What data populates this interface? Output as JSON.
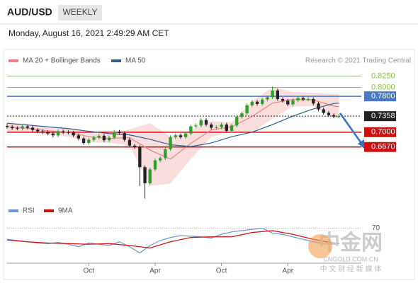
{
  "header": {
    "symbol": "AUD/USD",
    "period": "WEEKLY",
    "date": "Monday, August 16, 2021 2:49:29 AM CET"
  },
  "chart_data": [
    {
      "type": "candlestick",
      "legend": [
        {
          "name": "MA 20 + Bollinger Bands",
          "color": "#f08080"
        },
        {
          "name": "MA 50",
          "color": "#2f5f8f"
        }
      ],
      "credit": "Research © 2021 Trading Central",
      "up_color": "#2ca02c",
      "down_color": "#222222",
      "open": [
        0.714,
        0.712,
        0.709,
        0.708,
        0.713,
        0.71,
        0.705,
        0.702,
        0.7,
        0.697,
        0.693,
        0.702,
        0.7,
        0.699,
        0.693,
        0.686,
        0.676,
        0.683,
        0.688,
        0.692,
        0.682,
        0.688,
        0.701,
        0.698,
        0.683,
        0.67,
        0.667,
        0.622,
        0.586,
        0.617,
        0.637,
        0.642,
        0.662,
        0.689,
        0.693,
        0.689,
        0.697,
        0.713,
        0.715,
        0.727,
        0.717,
        0.71,
        0.711,
        0.717,
        0.703,
        0.715,
        0.734,
        0.742,
        0.76,
        0.768,
        0.763,
        0.773,
        0.778,
        0.793,
        0.774,
        0.77,
        0.762,
        0.771,
        0.776,
        0.773,
        0.774,
        0.764,
        0.751,
        0.743,
        0.738,
        0.735
      ],
      "high": [
        0.718,
        0.716,
        0.713,
        0.717,
        0.717,
        0.714,
        0.709,
        0.706,
        0.704,
        0.701,
        0.706,
        0.706,
        0.704,
        0.703,
        0.697,
        0.69,
        0.687,
        0.692,
        0.696,
        0.696,
        0.692,
        0.705,
        0.705,
        0.702,
        0.687,
        0.674,
        0.671,
        0.626,
        0.621,
        0.641,
        0.646,
        0.666,
        0.693,
        0.697,
        0.697,
        0.701,
        0.717,
        0.719,
        0.731,
        0.731,
        0.721,
        0.715,
        0.721,
        0.721,
        0.719,
        0.738,
        0.746,
        0.764,
        0.772,
        0.772,
        0.777,
        0.782,
        0.802,
        0.797,
        0.778,
        0.774,
        0.775,
        0.78,
        0.78,
        0.778,
        0.778,
        0.768,
        0.755,
        0.747,
        0.742,
        0.74
      ],
      "low": [
        0.708,
        0.705,
        0.704,
        0.704,
        0.706,
        0.701,
        0.698,
        0.696,
        0.693,
        0.689,
        0.689,
        0.696,
        0.695,
        0.689,
        0.682,
        0.672,
        0.672,
        0.679,
        0.684,
        0.678,
        0.678,
        0.684,
        0.694,
        0.679,
        0.666,
        0.663,
        0.58,
        0.552,
        0.582,
        0.613,
        0.633,
        0.638,
        0.658,
        0.685,
        0.685,
        0.685,
        0.693,
        0.709,
        0.711,
        0.713,
        0.706,
        0.706,
        0.707,
        0.699,
        0.699,
        0.711,
        0.73,
        0.738,
        0.756,
        0.759,
        0.759,
        0.769,
        0.774,
        0.77,
        0.766,
        0.758,
        0.758,
        0.767,
        0.769,
        0.769,
        0.76,
        0.747,
        0.739,
        0.734,
        0.731,
        0.731
      ],
      "close": [
        0.712,
        0.709,
        0.708,
        0.713,
        0.71,
        0.705,
        0.702,
        0.7,
        0.697,
        0.693,
        0.702,
        0.7,
        0.699,
        0.693,
        0.686,
        0.676,
        0.683,
        0.688,
        0.692,
        0.682,
        0.688,
        0.701,
        0.698,
        0.683,
        0.67,
        0.667,
        0.622,
        0.586,
        0.617,
        0.637,
        0.642,
        0.662,
        0.689,
        0.693,
        0.689,
        0.697,
        0.713,
        0.715,
        0.727,
        0.717,
        0.71,
        0.711,
        0.717,
        0.703,
        0.715,
        0.734,
        0.742,
        0.76,
        0.768,
        0.763,
        0.773,
        0.778,
        0.793,
        0.774,
        0.77,
        0.762,
        0.771,
        0.776,
        0.773,
        0.774,
        0.764,
        0.751,
        0.743,
        0.738,
        0.735,
        0.7358
      ],
      "overlay_x": [
        0,
        4,
        8,
        12,
        16,
        20,
        24,
        28,
        32,
        36,
        40,
        44,
        48,
        52,
        56,
        60,
        64,
        65
      ],
      "band_upper": [
        0.722,
        0.718,
        0.712,
        0.708,
        0.7,
        0.696,
        0.706,
        0.72,
        0.69,
        0.705,
        0.725,
        0.722,
        0.77,
        0.8,
        0.79,
        0.788,
        0.785,
        0.785
      ],
      "band_lower": [
        0.702,
        0.7,
        0.694,
        0.69,
        0.678,
        0.676,
        0.67,
        0.58,
        0.585,
        0.64,
        0.69,
        0.7,
        0.7,
        0.73,
        0.757,
        0.758,
        0.732,
        0.731
      ],
      "ma20": [
        0.712,
        0.709,
        0.703,
        0.7,
        0.69,
        0.686,
        0.688,
        0.66,
        0.64,
        0.675,
        0.705,
        0.712,
        0.735,
        0.765,
        0.773,
        0.772,
        0.758,
        0.757
      ],
      "ma50": [
        0.72,
        0.716,
        0.712,
        0.708,
        0.702,
        0.697,
        0.694,
        0.684,
        0.672,
        0.668,
        0.676,
        0.69,
        0.7,
        0.717,
        0.736,
        0.752,
        0.764,
        0.765
      ],
      "levels": [
        {
          "value": 0.825,
          "label": "0.8250",
          "color": "#8bc34a",
          "boxed": false
        },
        {
          "value": 0.8,
          "label": "0.8000",
          "color": "#8bc34a",
          "boxed": false
        },
        {
          "value": 0.78,
          "label": "0.7800",
          "color": "#4a78c2",
          "boxed": true
        },
        {
          "value": 0.7358,
          "label": "0.7358",
          "color": "#222222",
          "boxed": true,
          "dotted": true
        },
        {
          "value": 0.7,
          "label": "0.7000",
          "color": "#cc1111",
          "boxed": true
        },
        {
          "value": 0.667,
          "label": "0.6670",
          "color": "#cc1111",
          "boxed": true
        }
      ],
      "xlim": [
        0,
        69.4
      ],
      "ylim": [
        0.545,
        0.845
      ],
      "xticks": [
        {
          "value": 16,
          "label": "Oct"
        },
        {
          "value": 29,
          "label": "Apr"
        },
        {
          "value": 42,
          "label": "Oct"
        },
        {
          "value": 55,
          "label": "Apr"
        }
      ]
    },
    {
      "type": "rsi",
      "series": [
        {
          "name": "RSI",
          "color": "#6f95d8",
          "x": [
            0,
            2,
            4,
            6,
            8,
            10,
            12,
            14,
            16,
            18,
            20,
            22,
            24,
            26,
            28,
            30,
            32,
            34,
            36,
            38,
            40,
            42,
            44,
            46,
            48,
            50,
            52,
            54,
            56,
            58,
            60,
            62,
            64,
            65
          ],
          "values": [
            52,
            50,
            48,
            46,
            45,
            47,
            44,
            40,
            46,
            44,
            42,
            48,
            40,
            30,
            42,
            50,
            55,
            58,
            57,
            56,
            54,
            60,
            64,
            66,
            68,
            70,
            62,
            60,
            56,
            52,
            48,
            45,
            44,
            45
          ]
        },
        {
          "name": "9MA",
          "color": "#cc1111",
          "x": [
            0,
            4,
            8,
            12,
            16,
            20,
            24,
            28,
            32,
            36,
            40,
            44,
            48,
            52,
            56,
            60,
            64,
            65
          ],
          "values": [
            51,
            48,
            46,
            45,
            44,
            45,
            42,
            38,
            48,
            55,
            56,
            56,
            63,
            66,
            60,
            52,
            46,
            45
          ]
        }
      ],
      "ylim": [
        10,
        90
      ],
      "yticks": [
        70
      ]
    }
  ],
  "watermark": {
    "name": "中金网",
    "site": "CNGOLD.COM.CN",
    "slogan": "中 文 财 经 新 媒 体"
  }
}
